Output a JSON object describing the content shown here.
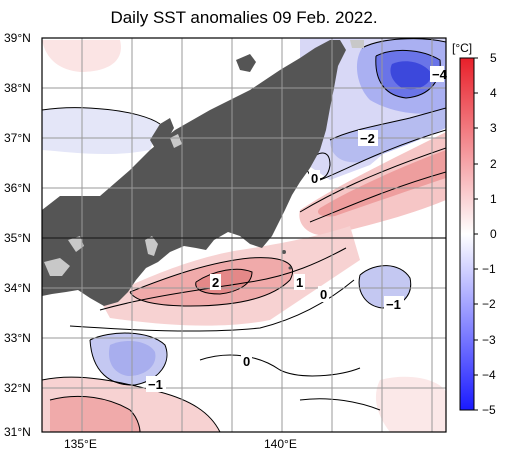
{
  "title": "Daily SST anomalies 09 Feb. 2022.",
  "latitude_labels": [
    "39°N",
    "38°N",
    "37°N",
    "36°N",
    "35°N",
    "34°N",
    "33°N",
    "32°N",
    "31°N"
  ],
  "longitude_labels": [
    "135°E",
    "140°E"
  ],
  "colorbar": {
    "unit": "[°C]",
    "ticks": [
      "5",
      "4",
      "3",
      "2",
      "1",
      "0",
      "−1",
      "−2",
      "−3",
      "−4",
      "−5"
    ],
    "warm_color": "#e8202a",
    "cold_color": "#1a1aff",
    "neutral_color": "#ffffff"
  },
  "contour_labels": [
    {
      "text": "−4"
    },
    {
      "text": "−2"
    },
    {
      "text": "0"
    },
    {
      "text": "2"
    },
    {
      "text": "1"
    },
    {
      "text": "0"
    },
    {
      "text": "−1"
    },
    {
      "text": "0"
    },
    {
      "text": "−1"
    }
  ],
  "colors": {
    "land": "#555555",
    "lake": "#c8c8c8",
    "grid": "#999999",
    "frame": "#000000"
  }
}
